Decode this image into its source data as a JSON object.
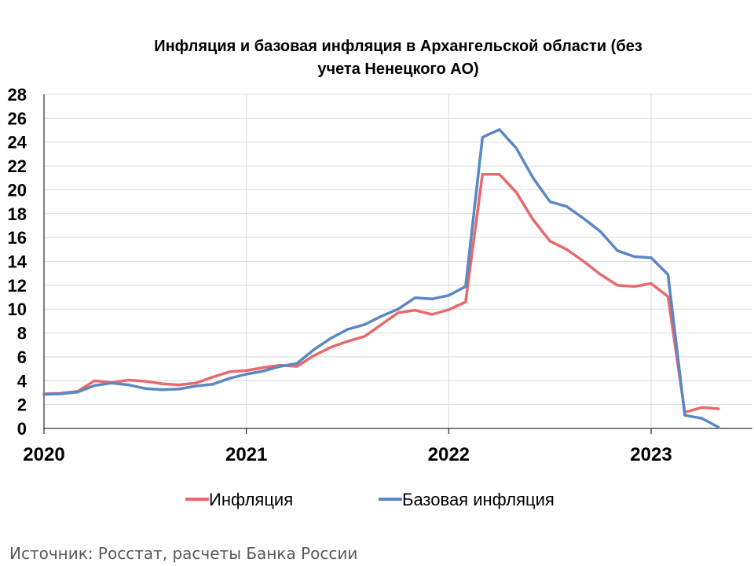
{
  "chart_data": {
    "type": "line",
    "title_line1": "Инфляция и базовая инфляция в Архангельской области (без",
    "title_line2": "учета Ненецкого АО)",
    "ylim": [
      0,
      28
    ],
    "yticks": [
      "0",
      "2",
      "4",
      "6",
      "8",
      "10",
      "12",
      "14",
      "16",
      "18",
      "20",
      "22",
      "24",
      "26",
      "28"
    ],
    "xticks": [
      "2020",
      "2021",
      "2022",
      "2023"
    ],
    "x": [
      "2020-01",
      "2020-02",
      "2020-03",
      "2020-04",
      "2020-05",
      "2020-06",
      "2020-07",
      "2020-08",
      "2020-09",
      "2020-10",
      "2020-11",
      "2020-12",
      "2021-01",
      "2021-02",
      "2021-03",
      "2021-04",
      "2021-05",
      "2021-06",
      "2021-07",
      "2021-08",
      "2021-09",
      "2021-10",
      "2021-11",
      "2021-12",
      "2022-01",
      "2022-02",
      "2022-03",
      "2022-04",
      "2022-05",
      "2022-06",
      "2022-07",
      "2022-08",
      "2022-09",
      "2022-10",
      "2022-11",
      "2022-12",
      "2023-01",
      "2023-02",
      "2023-03",
      "2023-04",
      "2023-05"
    ],
    "grid": true,
    "legend_position": "bottom",
    "series": [
      {
        "name": "Инфляция",
        "color": "#e8696b",
        "values": [
          2.9,
          2.95,
          3.1,
          4.0,
          3.85,
          4.05,
          3.95,
          3.75,
          3.65,
          3.8,
          4.3,
          4.75,
          4.85,
          5.1,
          5.3,
          5.2,
          6.1,
          6.8,
          7.3,
          7.7,
          8.7,
          9.7,
          9.9,
          9.55,
          9.95,
          10.6,
          21.3,
          21.3,
          19.8,
          17.5,
          15.7,
          15.0,
          14.0,
          12.9,
          12.0,
          11.9,
          12.15,
          11.05,
          1.35,
          1.75,
          1.65
        ]
      },
      {
        "name": "Базовая инфляция",
        "color": "#5b87c2",
        "values": [
          2.85,
          2.9,
          3.05,
          3.6,
          3.8,
          3.65,
          3.35,
          3.25,
          3.3,
          3.55,
          3.7,
          4.2,
          4.55,
          4.8,
          5.2,
          5.45,
          6.6,
          7.55,
          8.3,
          8.7,
          9.4,
          10.0,
          10.95,
          10.85,
          11.15,
          11.9,
          24.4,
          25.05,
          23.5,
          21.0,
          19.0,
          18.6,
          17.6,
          16.5,
          14.9,
          14.4,
          14.3,
          12.9,
          1.1,
          0.85,
          0.1
        ]
      }
    ]
  },
  "source_text": "Источник: Росстат, расчеты Банка России"
}
